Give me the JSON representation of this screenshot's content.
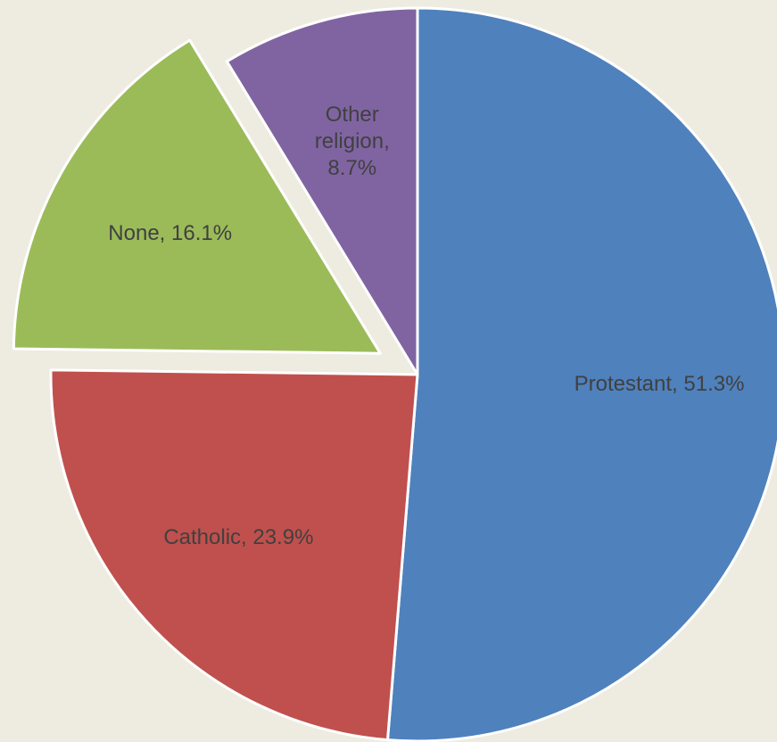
{
  "chart_data": {
    "type": "pie",
    "values": [
      51.3,
      23.9,
      16.1,
      8.7
    ],
    "value_labels": [
      "Protestant, 51.3%",
      "Catholic, 23.9%",
      "None, 16.1%",
      "Other religion, 8.7%"
    ],
    "colors": [
      "#4f81bd",
      "#c0504d",
      "#9bbb59",
      "#8064a2"
    ],
    "exploded": [
      false,
      false,
      true,
      false
    ]
  }
}
